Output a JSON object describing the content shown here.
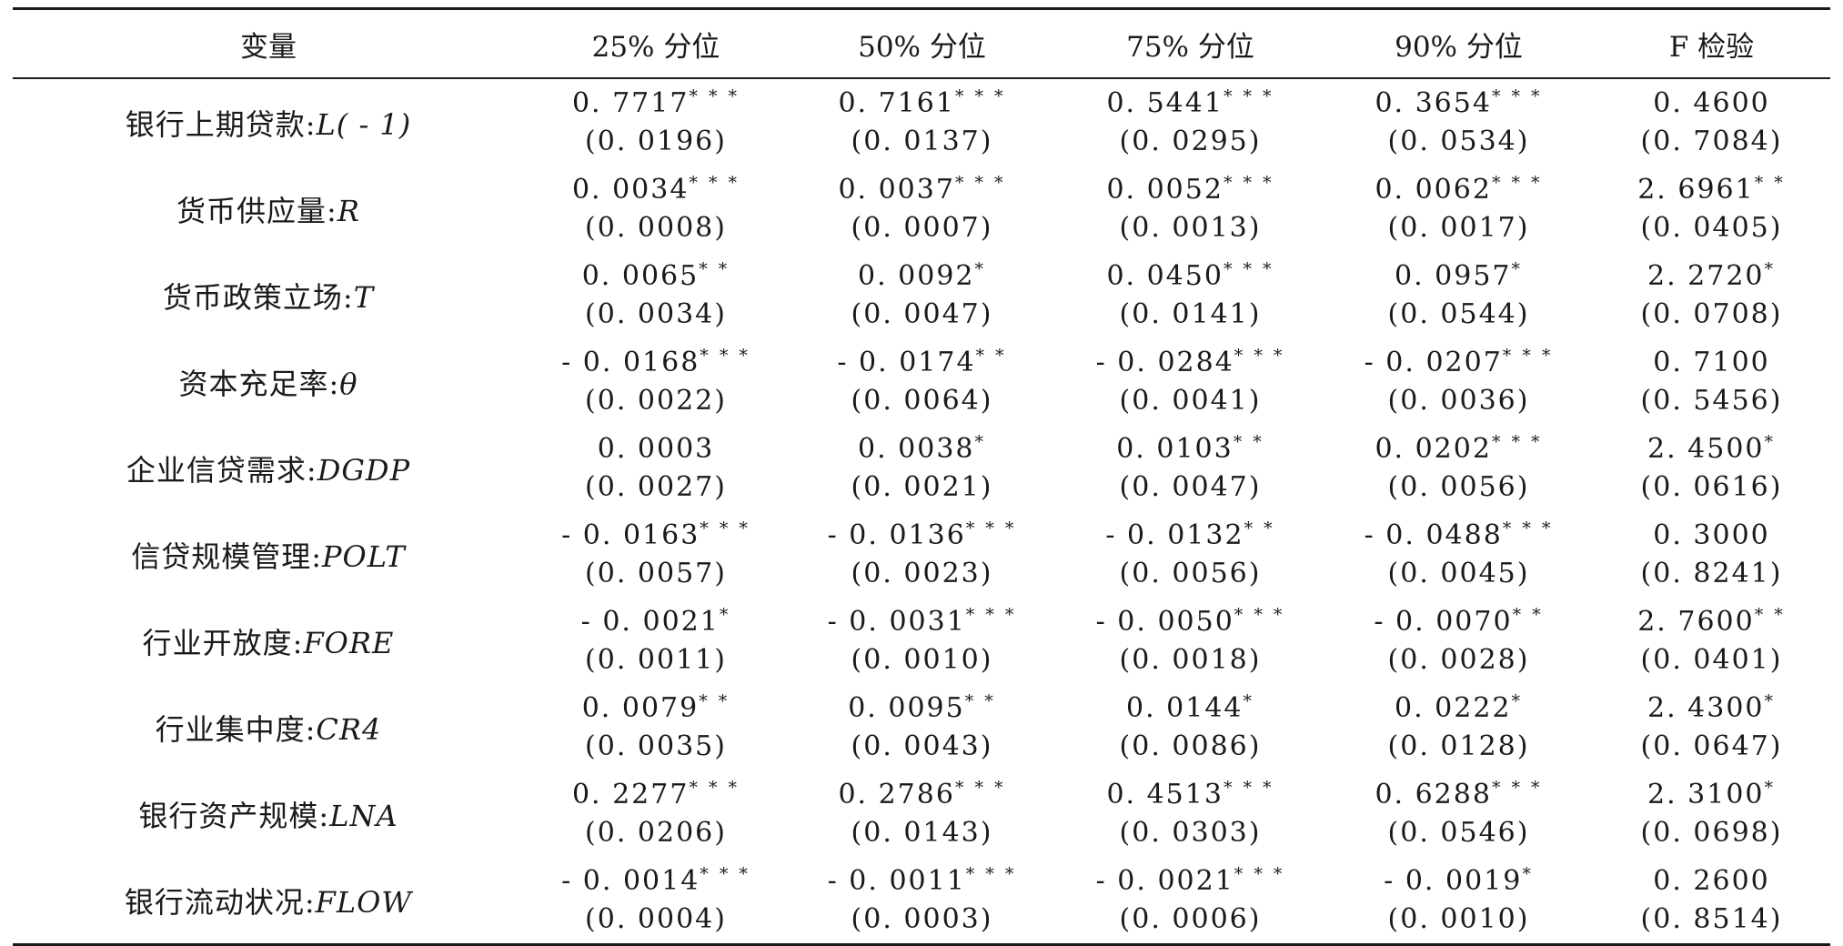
{
  "table": {
    "headers": [
      "变量",
      "25% 分位",
      "50% 分位",
      "75% 分位",
      "90% 分位",
      "F 检验"
    ],
    "rows": [
      {
        "label": "银行上期贷款:",
        "symbol": "L( - 1)",
        "cells": [
          {
            "coef": "0. 7717",
            "stars": "* * *",
            "se": "(0. 0196)"
          },
          {
            "coef": "0. 7161",
            "stars": "* * *",
            "se": "(0. 0137)"
          },
          {
            "coef": "0. 5441",
            "stars": "* * *",
            "se": "(0. 0295)"
          },
          {
            "coef": "0. 3654",
            "stars": "* * *",
            "se": "(0. 0534)"
          },
          {
            "coef": "0. 4600",
            "stars": "",
            "se": "(0. 7084)"
          }
        ]
      },
      {
        "label": "货币供应量:",
        "symbol": "R",
        "cells": [
          {
            "coef": "0. 0034",
            "stars": "* * *",
            "se": "(0. 0008)"
          },
          {
            "coef": "0. 0037",
            "stars": "* * *",
            "se": "(0. 0007)"
          },
          {
            "coef": "0. 0052",
            "stars": "* * *",
            "se": "(0. 0013)"
          },
          {
            "coef": "0. 0062",
            "stars": "* * *",
            "se": "(0. 0017)"
          },
          {
            "coef": "2. 6961",
            "stars": "* *",
            "se": "(0. 0405)"
          }
        ]
      },
      {
        "label": "货币政策立场:",
        "symbol": "T",
        "cells": [
          {
            "coef": "0. 0065",
            "stars": "* *",
            "se": "(0. 0034)"
          },
          {
            "coef": "0. 0092",
            "stars": "*",
            "se": "(0. 0047)"
          },
          {
            "coef": "0. 0450",
            "stars": "* * *",
            "se": "(0. 0141)"
          },
          {
            "coef": "0. 0957",
            "stars": "*",
            "se": "(0. 0544)"
          },
          {
            "coef": "2. 2720",
            "stars": "*",
            "se": "(0. 0708)"
          }
        ]
      },
      {
        "label": "资本充足率:",
        "symbol": "θ",
        "cells": [
          {
            "coef": "- 0. 0168",
            "stars": "* * *",
            "se": "(0. 0022)"
          },
          {
            "coef": "- 0. 0174",
            "stars": "* *",
            "se": "(0. 0064)"
          },
          {
            "coef": "- 0. 0284",
            "stars": "* * *",
            "se": "(0. 0041)"
          },
          {
            "coef": "- 0. 0207",
            "stars": "* * *",
            "se": "(0. 0036)"
          },
          {
            "coef": "0. 7100",
            "stars": "",
            "se": "(0. 5456)"
          }
        ]
      },
      {
        "label": "企业信贷需求:",
        "symbol": "DGDP",
        "cells": [
          {
            "coef": "0. 0003",
            "stars": "",
            "se": "(0. 0027)"
          },
          {
            "coef": "0. 0038",
            "stars": "*",
            "se": "(0. 0021)"
          },
          {
            "coef": "0. 0103",
            "stars": "* *",
            "se": "(0. 0047)"
          },
          {
            "coef": "0. 0202",
            "stars": "* * *",
            "se": "(0. 0056)"
          },
          {
            "coef": "2. 4500",
            "stars": "*",
            "se": "(0. 0616)"
          }
        ]
      },
      {
        "label": "信贷规模管理:",
        "symbol": "POLT",
        "cells": [
          {
            "coef": "- 0. 0163",
            "stars": "* * *",
            "se": "(0. 0057)"
          },
          {
            "coef": "- 0. 0136",
            "stars": "* * *",
            "se": "(0. 0023)"
          },
          {
            "coef": "- 0. 0132",
            "stars": "* *",
            "se": "(0. 0056)"
          },
          {
            "coef": "- 0. 0488",
            "stars": "* * *",
            "se": "(0. 0045)"
          },
          {
            "coef": "0. 3000",
            "stars": "",
            "se": "(0. 8241)"
          }
        ]
      },
      {
        "label": "行业开放度:",
        "symbol": "FORE",
        "cells": [
          {
            "coef": "- 0. 0021",
            "stars": "*",
            "se": "(0. 0011)"
          },
          {
            "coef": "- 0. 0031",
            "stars": "* * *",
            "se": "(0. 0010)"
          },
          {
            "coef": "- 0. 0050",
            "stars": "* * *",
            "se": "(0. 0018)"
          },
          {
            "coef": "- 0. 0070",
            "stars": "* *",
            "se": "(0. 0028)"
          },
          {
            "coef": "2. 7600",
            "stars": "* *",
            "se": "(0. 0401)"
          }
        ]
      },
      {
        "label": "行业集中度:",
        "symbol": "CR4",
        "cells": [
          {
            "coef": "0. 0079",
            "stars": "* *",
            "se": "(0. 0035)"
          },
          {
            "coef": "0. 0095",
            "stars": "* *",
            "se": "(0. 0043)"
          },
          {
            "coef": "0. 0144",
            "stars": "*",
            "se": "(0. 0086)"
          },
          {
            "coef": "0. 0222",
            "stars": "*",
            "se": "(0. 0128)"
          },
          {
            "coef": "2. 4300",
            "stars": "*",
            "se": "(0. 0647)"
          }
        ]
      },
      {
        "label": "银行资产规模:",
        "symbol": "LNA",
        "cells": [
          {
            "coef": "0. 2277",
            "stars": "* * *",
            "se": "(0. 0206)"
          },
          {
            "coef": "0. 2786",
            "stars": "* * *",
            "se": "(0. 0143)"
          },
          {
            "coef": "0. 4513",
            "stars": "* * *",
            "se": "(0. 0303)"
          },
          {
            "coef": "0. 6288",
            "stars": "* * *",
            "se": "(0. 0546)"
          },
          {
            "coef": "2. 3100",
            "stars": "*",
            "se": "(0. 0698)"
          }
        ]
      },
      {
        "label": "银行流动状况:",
        "symbol": "FLOW",
        "cells": [
          {
            "coef": "- 0. 0014",
            "stars": "* * *",
            "se": "(0. 0004)"
          },
          {
            "coef": "- 0. 0011",
            "stars": "* * *",
            "se": "(0. 0003)"
          },
          {
            "coef": "- 0. 0021",
            "stars": "* * *",
            "se": "(0. 0006)"
          },
          {
            "coef": "- 0. 0019",
            "stars": "*",
            "se": "(0. 0010)"
          },
          {
            "coef": "0. 2600",
            "stars": "",
            "se": "(0. 8514)"
          }
        ]
      }
    ]
  }
}
